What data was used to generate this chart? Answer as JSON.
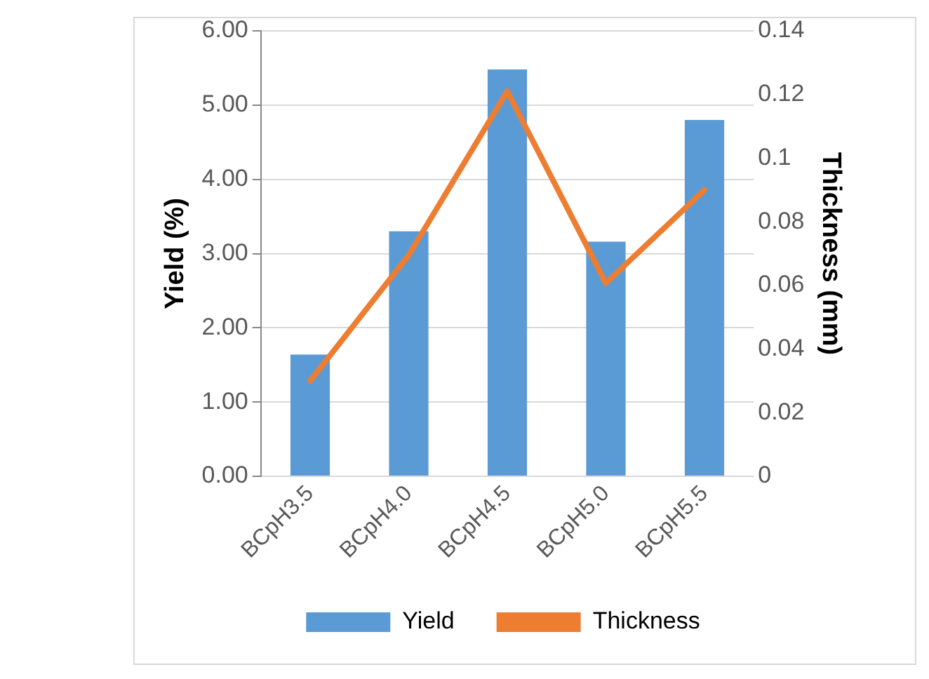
{
  "chart_data": {
    "type": "bar",
    "categories": [
      "BCpH3.5",
      "BCpH4.0",
      "BCpH4.5",
      "BCpH5.0",
      "BCpH5.5"
    ],
    "series": [
      {
        "name": "Yield",
        "color": "#5b9bd5",
        "values": [
          1.64,
          3.3,
          5.48,
          3.16,
          4.8
        ]
      },
      {
        "name": "Thickness",
        "type": "line",
        "axis": "y2",
        "color": "#ed7d31",
        "values": [
          0.03,
          0.0695,
          0.121,
          0.0607,
          0.09
        ]
      }
    ],
    "ylabel": "Yield (%)",
    "y2label": "Thickness (mm)",
    "ylim": [
      0,
      6
    ],
    "yticks": [
      {
        "value": 0,
        "label": "0.00"
      },
      {
        "value": 1,
        "label": "1.00"
      },
      {
        "value": 2,
        "label": "2.00"
      },
      {
        "value": 3,
        "label": "3.00"
      },
      {
        "value": 4,
        "label": "4.00"
      },
      {
        "value": 5,
        "label": "5.00"
      },
      {
        "value": 6,
        "label": "6.00"
      }
    ],
    "y2lim": [
      0,
      0.14
    ],
    "y2ticks": [
      0,
      0.02,
      0.04,
      0.06,
      0.08,
      0.1,
      0.12,
      0.14
    ],
    "grid": "y",
    "legend": "bottom",
    "marker": "none"
  }
}
